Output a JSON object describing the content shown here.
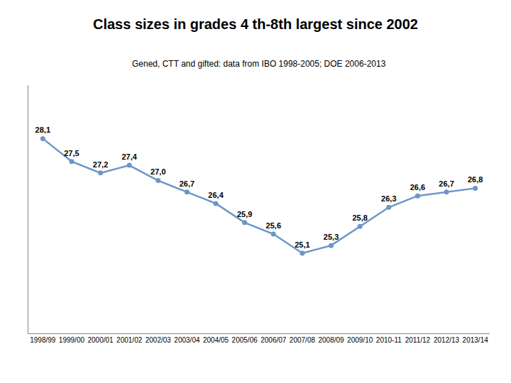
{
  "chart_data": {
    "type": "line",
    "title": "Class sizes in grades 4 th-8th largest since 2002",
    "subtitle": "Gened, CTT and gifted: data from IBO 1998-2005; DOE 2006-2013",
    "categories": [
      "1998/99",
      "1999/00",
      "2000/01",
      "2001/02",
      "2002/03",
      "2003/04",
      "2004/05",
      "2005/06",
      "2006/07",
      "2007/08",
      "2008/09",
      "2009/10",
      "2010-11",
      "2011/12",
      "2012/13",
      "2013/14"
    ],
    "values": [
      28.1,
      27.5,
      27.2,
      27.4,
      27.0,
      26.7,
      26.4,
      25.9,
      25.6,
      25.1,
      25.3,
      25.8,
      26.3,
      26.6,
      26.7,
      26.8
    ],
    "value_labels": [
      "28,1",
      "27,5",
      "27,2",
      "27,4",
      "27,0",
      "26,7",
      "26,4",
      "25,9",
      "25,6",
      "25,1",
      "25,3",
      "25,8",
      "26,3",
      "26,6",
      "26,7",
      "26,8"
    ],
    "data_labels": true,
    "color": "#6b96c8",
    "marker": "circle",
    "line_style": "solid",
    "ylim": [
      23.0,
      29.5
    ],
    "yticks": [],
    "grid": false,
    "tick_labels": "x"
  }
}
